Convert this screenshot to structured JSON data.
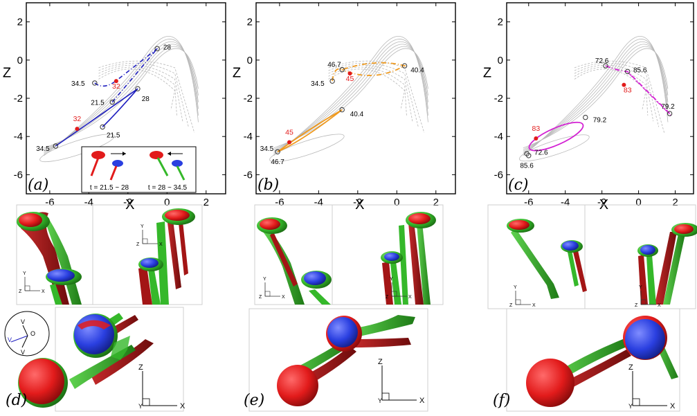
{
  "axes": {
    "x_label": "X",
    "z_label": "Z",
    "x_ticks": [
      "-6",
      "-4",
      "-2",
      "0",
      "2"
    ],
    "z_ticks": [
      "2",
      "0",
      "-2",
      "-4",
      "-6"
    ],
    "xlim": [
      -7.2,
      3.0
    ],
    "zlim": [
      -7.0,
      3.0
    ]
  },
  "panel_a": {
    "label": "(a)",
    "color": "#1f1fbf",
    "red_labels": [
      "32",
      "32"
    ],
    "black_labels": [
      "28",
      "34.5",
      "28",
      "21.5",
      "21.5",
      "34.5"
    ],
    "inset": {
      "caption_left": "t = 21.5 ~ 28",
      "caption_right": "t = 28 ~ 34.5"
    }
  },
  "panel_b": {
    "label": "(b)",
    "color": "#ef9a1f",
    "red_labels": [
      "45",
      "45"
    ],
    "black_labels": [
      "46.7",
      "40.4",
      "34.5",
      "40.4",
      "34.5",
      "46.7"
    ]
  },
  "panel_c": {
    "label": "(c)",
    "color": "#d321d3",
    "red_labels": [
      "83",
      "83"
    ],
    "black_labels": [
      "72.6",
      "85.6",
      "79.2",
      "79.2",
      "72.6",
      "85.6"
    ]
  },
  "bottom": {
    "label_d": "(d)",
    "label_e": "(e)",
    "label_f": "(f)",
    "triad_y": "Y",
    "triad_z": "Z",
    "triad_x": "X",
    "vel_labels": [
      "V",
      "O",
      "V",
      "V"
    ]
  },
  "colors": {
    "red": "#e21b1b",
    "darkred": "#a31515",
    "green": "#35b82a",
    "blue": "#2a3fe0",
    "trace": "#b8b8b8"
  }
}
